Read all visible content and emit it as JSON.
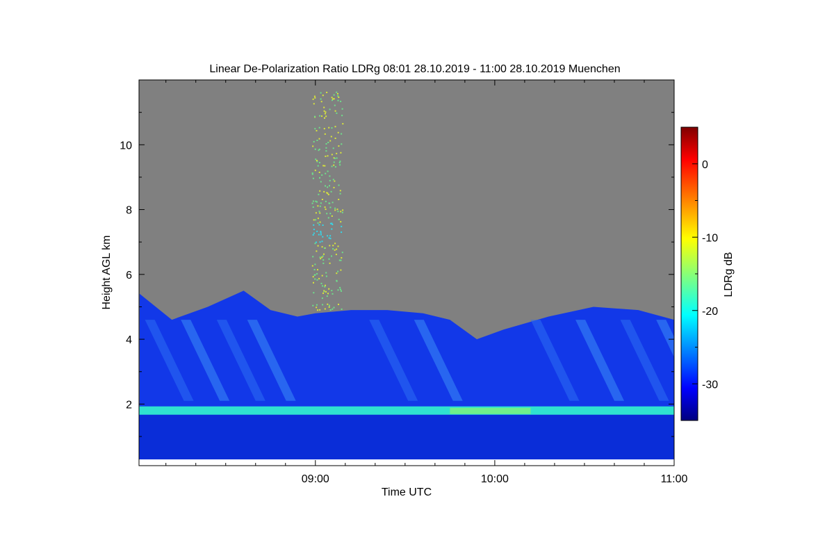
{
  "chart_data": {
    "type": "heatmap",
    "title": "Linear De-Polarization Ratio LDRg   08:01 28.10.2019 - 11:00 28.10.2019 Muenchen",
    "xlabel": "Time UTC",
    "ylabel": "Height AGL km",
    "x_range_utc": [
      "08:01",
      "11:00"
    ],
    "x_range_hours": [
      8.0167,
      11.0
    ],
    "ylim": [
      0.1,
      12.0
    ],
    "x_ticks": [
      {
        "value": 9.0,
        "label": "09:00"
      },
      {
        "value": 10.0,
        "label": "10:00"
      },
      {
        "value": 11.0,
        "label": "11:00"
      }
    ],
    "y_ticks": [
      {
        "value": 2,
        "label": "2"
      },
      {
        "value": 4,
        "label": "4"
      },
      {
        "value": 6,
        "label": "6"
      },
      {
        "value": 8,
        "label": "8"
      },
      {
        "value": 10,
        "label": "10"
      }
    ],
    "colorbar": {
      "label": "LDRg dB",
      "colormap": "jet",
      "vmin": -35,
      "vmax": 5,
      "ticks": [
        {
          "value": 0,
          "label": "0"
        },
        {
          "value": -10,
          "label": "-10"
        },
        {
          "value": -20,
          "label": "-20"
        },
        {
          "value": -30,
          "label": "-30"
        }
      ]
    },
    "background_color": "#808080",
    "features": {
      "cloud_top_km": [
        [
          8.02,
          5.4
        ],
        [
          8.2,
          4.6
        ],
        [
          8.4,
          5.0
        ],
        [
          8.6,
          5.5
        ],
        [
          8.75,
          4.9
        ],
        [
          8.9,
          4.7
        ],
        [
          9.0,
          4.8
        ],
        [
          9.2,
          4.9
        ],
        [
          9.4,
          4.9
        ],
        [
          9.6,
          4.8
        ],
        [
          9.75,
          4.6
        ],
        [
          9.9,
          4.0
        ],
        [
          10.05,
          4.3
        ],
        [
          10.3,
          4.7
        ],
        [
          10.55,
          5.0
        ],
        [
          10.8,
          4.9
        ],
        [
          11.0,
          4.6
        ]
      ],
      "boundary_layer_top_km": 1.8,
      "boundary_layer_ldr_db": -25,
      "cloud_ldr_db": -30,
      "sparse_signal_window_utc": [
        8.98,
        9.15
      ],
      "sparse_signal_ldr_db": -13
    }
  }
}
